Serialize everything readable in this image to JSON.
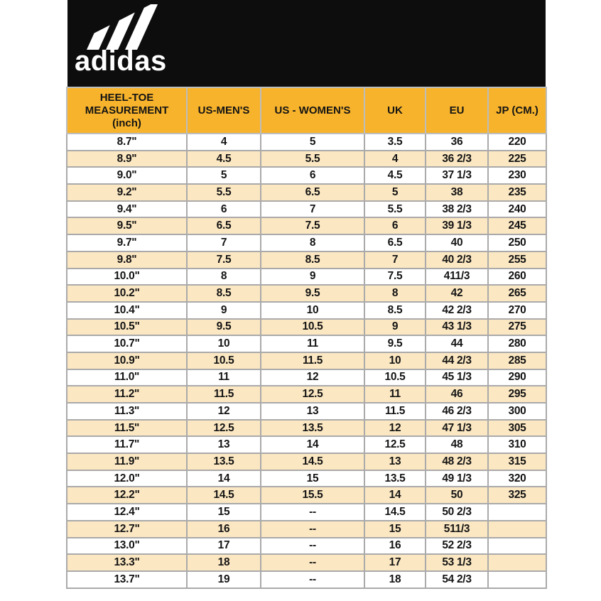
{
  "brand": {
    "wordmark": "adidas",
    "logo_icon": "adidas-three-stripes-mountain"
  },
  "colors": {
    "banner_bg": "#0D0D0D",
    "logo_color": "#FFFFFF",
    "header_bg": "#F7B32B",
    "row_alt_bg": "#FBE7C2",
    "grid": "#AAAAAA",
    "text": "#141414"
  },
  "table": {
    "columns": [
      {
        "key": "heel_toe",
        "label": "HEEL-TOE\nMEASUREMENT\n(inch)"
      },
      {
        "key": "us_mens",
        "label": "US-MEN'S"
      },
      {
        "key": "us_womens",
        "label": "US - WOMEN'S"
      },
      {
        "key": "uk",
        "label": "UK"
      },
      {
        "key": "eu",
        "label": "EU"
      },
      {
        "key": "jp",
        "label": "JP (CM.)"
      }
    ],
    "rows": [
      [
        "8.7\"",
        "4",
        "5",
        "3.5",
        "36",
        "220"
      ],
      [
        "8.9\"",
        "4.5",
        "5.5",
        "4",
        "36 2/3",
        "225"
      ],
      [
        "9.0\"",
        "5",
        "6",
        "4.5",
        "37 1/3",
        "230"
      ],
      [
        "9.2\"",
        "5.5",
        "6.5",
        "5",
        "38",
        "235"
      ],
      [
        "9.4\"",
        "6",
        "7",
        "5.5",
        "38 2/3",
        "240"
      ],
      [
        "9.5\"",
        "6.5",
        "7.5",
        "6",
        "39 1/3",
        "245"
      ],
      [
        "9.7\"",
        "7",
        "8",
        "6.5",
        "40",
        "250"
      ],
      [
        "9.8\"",
        "7.5",
        "8.5",
        "7",
        "40 2/3",
        "255"
      ],
      [
        "10.0\"",
        "8",
        "9",
        "7.5",
        "411/3",
        "260"
      ],
      [
        "10.2\"",
        "8.5",
        "9.5",
        "8",
        "42",
        "265"
      ],
      [
        "10.4\"",
        "9",
        "10",
        "8.5",
        "42 2/3",
        "270"
      ],
      [
        "10.5\"",
        "9.5",
        "10.5",
        "9",
        "43 1/3",
        "275"
      ],
      [
        "10.7\"",
        "10",
        "11",
        "9.5",
        "44",
        "280"
      ],
      [
        "10.9\"",
        "10.5",
        "11.5",
        "10",
        "44 2/3",
        "285"
      ],
      [
        "11.0\"",
        "11",
        "12",
        "10.5",
        "45 1/3",
        "290"
      ],
      [
        "11.2\"",
        "11.5",
        "12.5",
        "11",
        "46",
        "295"
      ],
      [
        "11.3\"",
        "12",
        "13",
        "11.5",
        "46 2/3",
        "300"
      ],
      [
        "11.5\"",
        "12.5",
        "13.5",
        "12",
        "47 1/3",
        "305"
      ],
      [
        "11.7\"",
        "13",
        "14",
        "12.5",
        "48",
        "310"
      ],
      [
        "11.9\"",
        "13.5",
        "14.5",
        "13",
        "48 2/3",
        "315"
      ],
      [
        "12.0\"",
        "14",
        "15",
        "13.5",
        "49 1/3",
        "320"
      ],
      [
        "12.2\"",
        "14.5",
        "15.5",
        "14",
        "50",
        "325"
      ],
      [
        "12.4\"",
        "15",
        "--",
        "14.5",
        "50 2/3",
        ""
      ],
      [
        "12.7\"",
        "16",
        "--",
        "15",
        "511/3",
        ""
      ],
      [
        "13.0\"",
        "17",
        "--",
        "16",
        "52 2/3",
        ""
      ],
      [
        "13.3\"",
        "18",
        "--",
        "17",
        "53 1/3",
        ""
      ],
      [
        "13.7\"",
        "19",
        "--",
        "18",
        "54 2/3",
        ""
      ]
    ]
  }
}
